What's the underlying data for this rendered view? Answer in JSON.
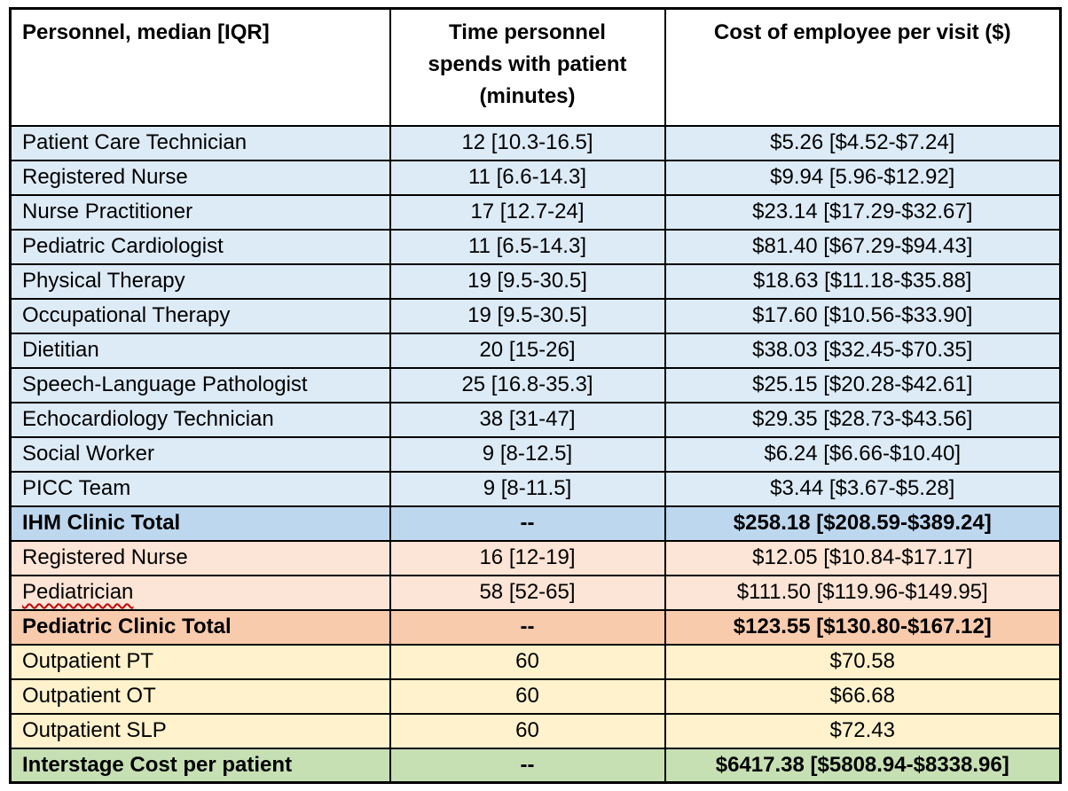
{
  "colors": {
    "light_blue": "#DDEBF7",
    "medium_blue": "#BDD7EE",
    "light_orange": "#FCE4D6",
    "medium_orange": "#F8CBAD",
    "light_yellow": "#FFF2CC",
    "green": "#C6E0B4",
    "border": "#000000",
    "header_bg": "#FFFFFF",
    "squiggle_red": "#C00000"
  },
  "table": {
    "header_personnel": "Personnel, median [IQR]",
    "header_time_lines": [
      "Time personnel",
      "spends with patient",
      "(minutes)"
    ],
    "header_cost": "Cost of employee per visit ($)",
    "rows": [
      {
        "personnel": "Patient Care Technician",
        "time": "12 [10.3-16.5]",
        "cost": "$5.26 [$4.52-$7.24]",
        "color": "light_blue",
        "bold": false,
        "squiggle": false
      },
      {
        "personnel": "Registered Nurse",
        "time": "11 [6.6-14.3]",
        "cost": "$9.94 [5.96-$12.92]",
        "color": "light_blue",
        "bold": false,
        "squiggle": false
      },
      {
        "personnel": "Nurse Practitioner",
        "time": "17 [12.7-24]",
        "cost": "$23.14 [$17.29-$32.67]",
        "color": "light_blue",
        "bold": false,
        "squiggle": false
      },
      {
        "personnel": "Pediatric Cardiologist",
        "time": "11 [6.5-14.3]",
        "cost": "$81.40 [$67.29-$94.43]",
        "color": "light_blue",
        "bold": false,
        "squiggle": false
      },
      {
        "personnel": "Physical Therapy",
        "time": "19 [9.5-30.5]",
        "cost": "$18.63 [$11.18-$35.88]",
        "color": "light_blue",
        "bold": false,
        "squiggle": false
      },
      {
        "personnel": "Occupational Therapy",
        "time": "19 [9.5-30.5]",
        "cost": "$17.60 [$10.56-$33.90]",
        "color": "light_blue",
        "bold": false,
        "squiggle": false
      },
      {
        "personnel": "Dietitian",
        "time": "20 [15-26]",
        "cost": "$38.03 [$32.45-$70.35]",
        "color": "light_blue",
        "bold": false,
        "squiggle": false
      },
      {
        "personnel": "Speech-Language Pathologist",
        "time": "25 [16.8-35.3]",
        "cost": "$25.15 [$20.28-$42.61]",
        "color": "light_blue",
        "bold": false,
        "squiggle": false
      },
      {
        "personnel": "Echocardiology Technician",
        "time": "38 [31-47]",
        "cost": "$29.35 [$28.73-$43.56]",
        "color": "light_blue",
        "bold": false,
        "squiggle": false
      },
      {
        "personnel": "Social Worker",
        "time": "9 [8-12.5]",
        "cost": "$6.24 [$6.66-$10.40]",
        "color": "light_blue",
        "bold": false,
        "squiggle": false
      },
      {
        "personnel": "PICC Team",
        "time": "9 [8-11.5]",
        "cost": "$3.44 [$3.67-$5.28]",
        "color": "light_blue",
        "bold": false,
        "squiggle": false
      },
      {
        "personnel": "IHM Clinic Total",
        "time": "--",
        "cost": "$258.18 [$208.59-$389.24]",
        "color": "medium_blue",
        "bold": true,
        "squiggle": false
      },
      {
        "personnel": "Registered Nurse",
        "time": "16 [12-19]",
        "cost": "$12.05 [$10.84-$17.17]",
        "color": "light_orange",
        "bold": false,
        "squiggle": false
      },
      {
        "personnel": "Pediatrician",
        "time": "58 [52-65]",
        "cost": "$111.50 [$119.96-$149.95]",
        "color": "light_orange",
        "bold": false,
        "squiggle": true
      },
      {
        "personnel": "Pediatric Clinic Total",
        "time": "--",
        "cost": "$123.55 [$130.80-$167.12]",
        "color": "medium_orange",
        "bold": true,
        "squiggle": false
      },
      {
        "personnel": "Outpatient PT",
        "time": "60",
        "cost": "$70.58",
        "color": "light_yellow",
        "bold": false,
        "squiggle": false
      },
      {
        "personnel": "Outpatient OT",
        "time": "60",
        "cost": "$66.68",
        "color": "light_yellow",
        "bold": false,
        "squiggle": false
      },
      {
        "personnel": "Outpatient SLP",
        "time": "60",
        "cost": "$72.43",
        "color": "light_yellow",
        "bold": false,
        "squiggle": false
      },
      {
        "personnel": "Interstage Cost per patient",
        "time": "--",
        "cost": "$6417.38 [$5808.94-$8338.96]",
        "color": "green",
        "bold": true,
        "squiggle": false
      }
    ]
  }
}
